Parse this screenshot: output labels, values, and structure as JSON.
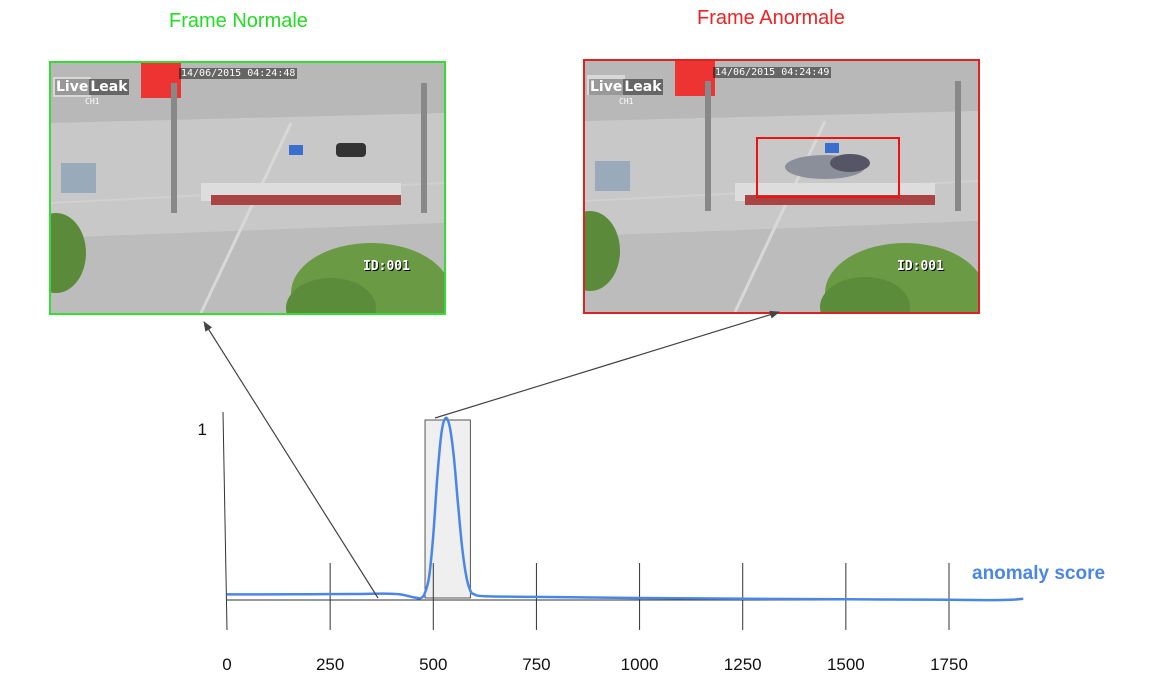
{
  "normal": {
    "title": "Frame Normale",
    "title_color": "#22dd22",
    "border_color": "#33dd33",
    "timestamp": "14/06/2015 04:24:48",
    "brand_left": "Live",
    "brand_right": "Leak",
    "channel": "CH1",
    "cam_id": "ID:001"
  },
  "anomaly": {
    "title": "Frame Anormale",
    "title_color": "#ee2222",
    "border_color": "#dd2222",
    "timestamp": "14/06/2015 04:24:49",
    "brand_left": "Live",
    "brand_right": "Leak",
    "channel": "CH1",
    "cam_id": "ID:001"
  },
  "chart_data": {
    "type": "line",
    "series": [
      {
        "name": "anomaly score",
        "color": "#4a86e8",
        "points": [
          [
            0,
            0.02
          ],
          [
            100,
            0.02
          ],
          [
            200,
            0.021
          ],
          [
            300,
            0.022
          ],
          [
            380,
            0.024
          ],
          [
            420,
            0.02
          ],
          [
            450,
            0.005
          ],
          [
            470,
            0.0
          ],
          [
            480,
            0.03
          ],
          [
            490,
            0.12
          ],
          [
            500,
            0.35
          ],
          [
            510,
            0.68
          ],
          [
            520,
            0.92
          ],
          [
            530,
            1.0
          ],
          [
            540,
            0.95
          ],
          [
            550,
            0.78
          ],
          [
            560,
            0.52
          ],
          [
            570,
            0.28
          ],
          [
            580,
            0.12
          ],
          [
            590,
            0.04
          ],
          [
            600,
            0.02
          ],
          [
            625,
            0.01
          ],
          [
            750,
            0.006
          ],
          [
            1000,
            0.0
          ],
          [
            1250,
            -0.004
          ],
          [
            1500,
            -0.007
          ],
          [
            1750,
            -0.01
          ],
          [
            1850,
            -0.012
          ],
          [
            1900,
            -0.01
          ],
          [
            1930,
            -0.004
          ]
        ]
      }
    ],
    "x_ticks": [
      0,
      250,
      500,
      750,
      1000,
      1250,
      1500,
      1750
    ],
    "y_ticks": [
      1
    ],
    "xlim": [
      0,
      2000
    ],
    "ylim": [
      0,
      1
    ],
    "highlight_x": [
      480,
      590
    ],
    "highlight_color": "#efefef",
    "grid": "vertical lines at x ticks",
    "legend": "right of curve"
  }
}
